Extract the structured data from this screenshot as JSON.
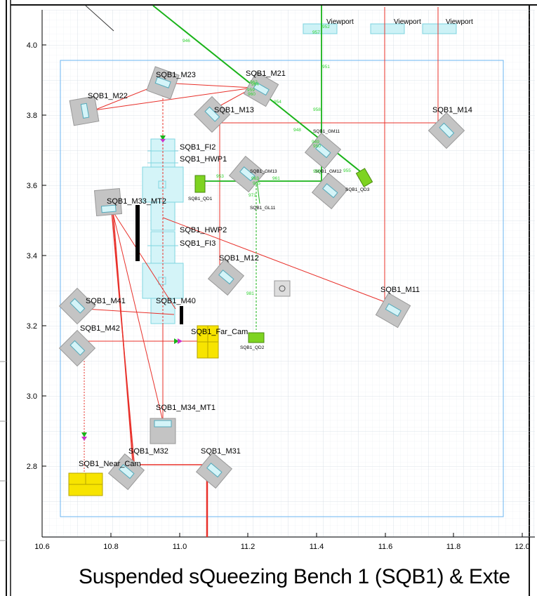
{
  "title": "Suspended sQueezing Bench 1 (SQB1) & Exte",
  "x_ticks": [
    "10.6",
    "10.8",
    "11.0",
    "11.2",
    "11.4",
    "11.6",
    "11.8",
    "12.0"
  ],
  "y_ticks": [
    "4.0",
    "3.8",
    "3.6",
    "3.4",
    "3.2",
    "3.0",
    "2.8"
  ],
  "viewports": [
    "Viewport",
    "Viewport",
    "Viewport"
  ],
  "components": {
    "m21": "SQB1_M21",
    "m22": "SQB1_M22",
    "m23": "SQB1_M23",
    "m13": "SQB1_M13",
    "m14": "SQB1_M14",
    "fi2": "SQB1_FI2",
    "hwp1": "SQB1_HWP1",
    "m33": "SQB1_M33_MT2",
    "hwp2": "SQB1_HWP2",
    "fi3": "SQB1_FI3",
    "m12": "SQB1_M12",
    "m11": "SQB1_M11",
    "m41": "SQB1_M41",
    "m40": "SQB1_M40",
    "m42": "SQB1_M42",
    "far_cam": "SQB1_Far_Cam",
    "m34": "SQB1_M34_MT1",
    "m32": "SQB1_M32",
    "m31": "SQB1_M31",
    "near_cam": "SQB1_Near_Cam",
    "gm11": "SQB1_GM11",
    "gm12": "SQB1_GM12",
    "gm13": "SQB1_GM13",
    "qd1": "SQB1_QD1",
    "qd2": "SQB1_QD2",
    "qd3": "SQB1_QD3",
    "gl11": "SQB1_GL11"
  },
  "beam_ids": [
    "946",
    "948",
    "949",
    "950",
    "951",
    "952",
    "953",
    "954",
    "955",
    "956",
    "957",
    "958",
    "959",
    "960",
    "961",
    "962",
    "963",
    "964",
    "965",
    "971",
    "981"
  ],
  "colors": {
    "red_beam": "#e8302a",
    "green_beam": "#1ab31a",
    "optic_cyan": "#bdf0f5",
    "camera_yellow": "#f7e400",
    "detector_green": "#7ed321",
    "mount_grey": "#b8b8b8",
    "bench_outline": "#6bb4f0",
    "grid": "#e1e6ec"
  }
}
